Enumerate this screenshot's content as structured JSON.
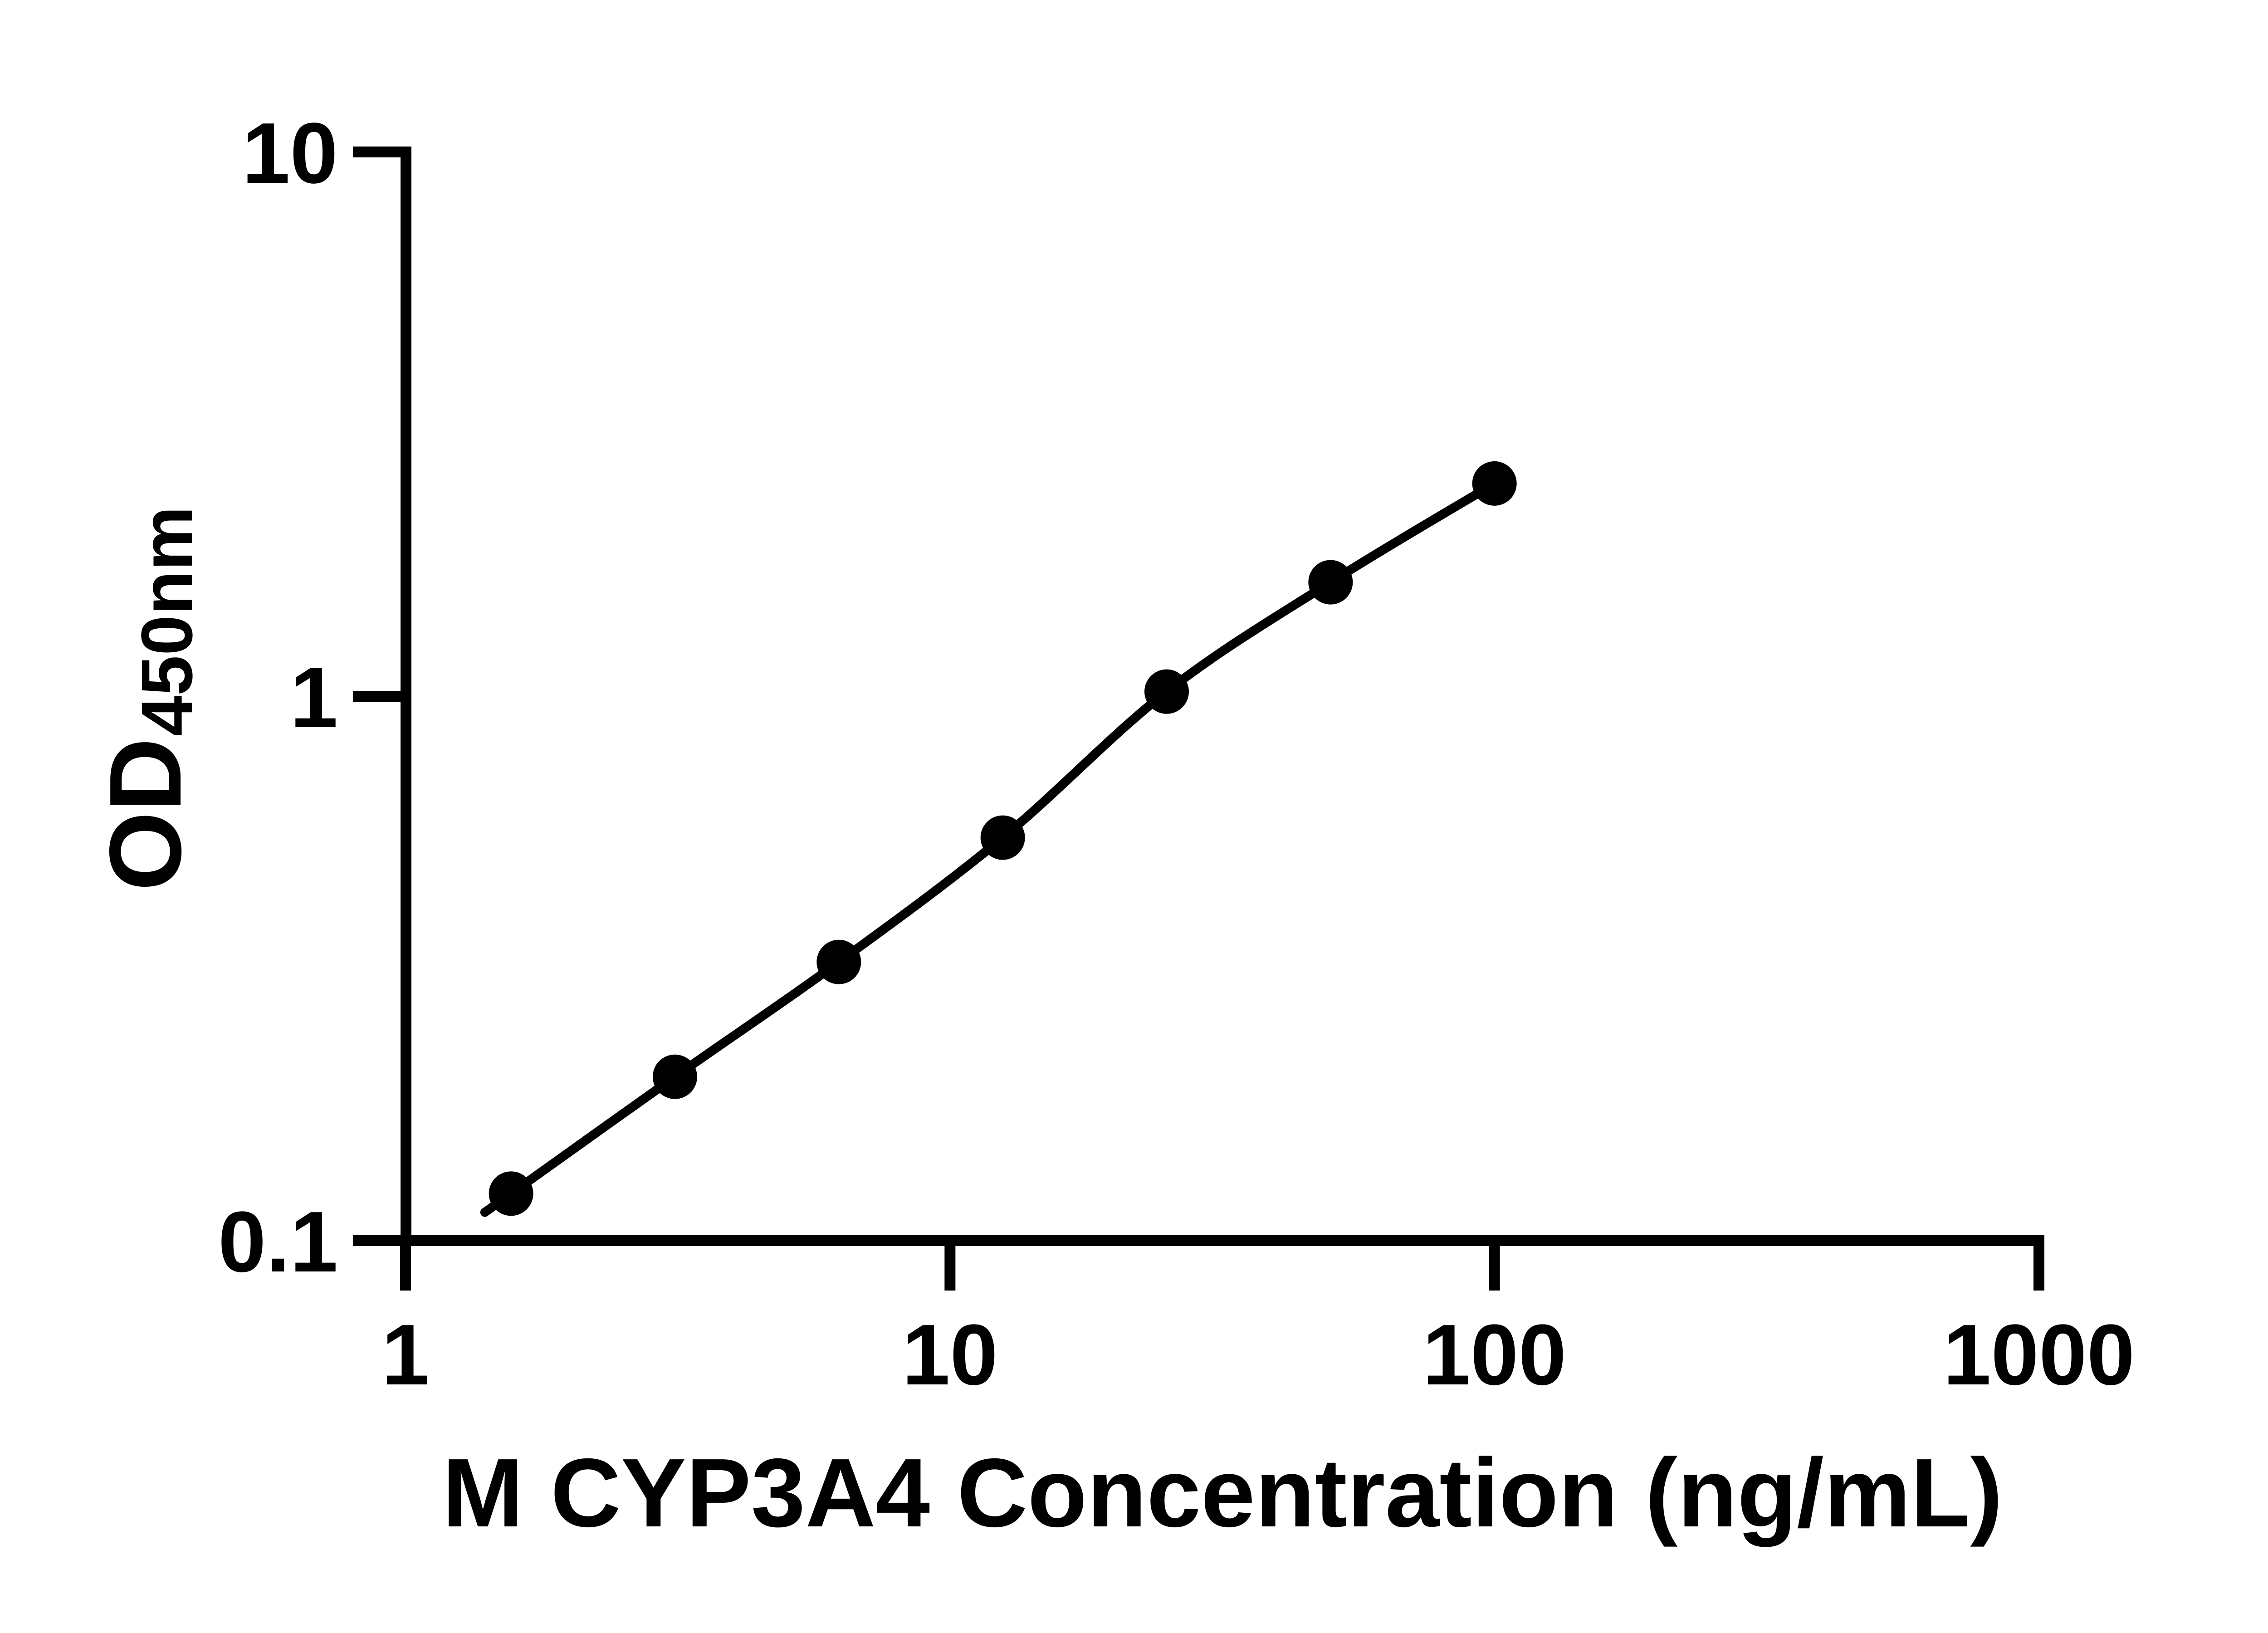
{
  "figure": {
    "background_color": "#ffffff",
    "ink_color": "#000000"
  },
  "chart_data": {
    "type": "scatter",
    "title": "",
    "xlabel": "M CYP3A4 Concentration (ng/mL)",
    "ylabel": "OD",
    "ylabel_subscript": "450nm",
    "x_scale": "log10",
    "y_scale": "log10",
    "xlim": [
      1,
      1000
    ],
    "ylim": [
      0.1,
      10
    ],
    "grid": false,
    "legend": "none",
    "x_ticks": [
      {
        "value": 1,
        "label": "1"
      },
      {
        "value": 10,
        "label": "10"
      },
      {
        "value": 100,
        "label": "100"
      },
      {
        "value": 1000,
        "label": "1000"
      }
    ],
    "y_ticks": [
      {
        "value": 0.1,
        "label": "0.1"
      },
      {
        "value": 1,
        "label": "1"
      },
      {
        "value": 10,
        "label": "10"
      }
    ],
    "series": [
      {
        "name": "standard-curve",
        "marker_shape": "filled-circle",
        "marker_color": "#000000",
        "line_style": "solid",
        "line_color": "#000000",
        "points": [
          {
            "concentration_ng_ml": 1.5625,
            "od450": 0.122
          },
          {
            "concentration_ng_ml": 3.125,
            "od450": 0.2
          },
          {
            "concentration_ng_ml": 6.25,
            "od450": 0.325
          },
          {
            "concentration_ng_ml": 12.5,
            "od450": 0.55
          },
          {
            "concentration_ng_ml": 25,
            "od450": 1.02
          },
          {
            "concentration_ng_ml": 50,
            "od450": 1.62
          },
          {
            "concentration_ng_ml": 100,
            "od450": 2.46
          }
        ]
      }
    ]
  }
}
